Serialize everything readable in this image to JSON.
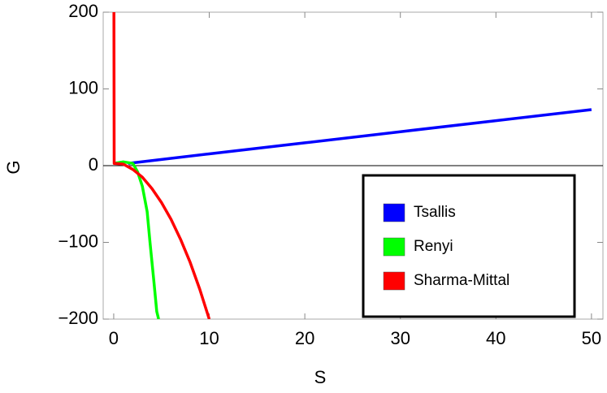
{
  "chart_data": {
    "type": "line",
    "x_label": "S",
    "y_label": "G",
    "xlim": [
      -1.1,
      51.2
    ],
    "ylim": [
      -200,
      200
    ],
    "xticks": [
      0,
      10,
      20,
      30,
      40,
      50
    ],
    "yticks": [
      {
        "value": -200,
        "label": "−200"
      },
      {
        "value": -100,
        "label": "−100"
      },
      0,
      100,
      200
    ],
    "legend": "lower right",
    "series": [
      {
        "name": "Tsallis",
        "color": "#0000ff",
        "x": [
          1.5,
          10,
          20,
          30,
          40,
          50
        ],
        "values": [
          3,
          15.3,
          29.7,
          44.2,
          58.6,
          73
        ]
      },
      {
        "name": "Renyi",
        "color": "#00ff00",
        "x": [
          0,
          1,
          2,
          2.5,
          3,
          3.5,
          3.8,
          4.2,
          4.5,
          4.7
        ],
        "values": [
          3,
          5,
          3,
          -8,
          -27,
          -60,
          -100,
          -150,
          -190,
          -200
        ]
      },
      {
        "name": "Sharma-Mittal",
        "color": "#ff0000",
        "x": [
          0.02,
          0.05,
          1,
          2,
          3,
          4,
          5,
          6,
          7,
          8,
          9,
          10
        ],
        "values": [
          200,
          3,
          2,
          -5,
          -15,
          -30,
          -48,
          -70,
          -96,
          -126,
          -161,
          -200
        ]
      }
    ]
  }
}
